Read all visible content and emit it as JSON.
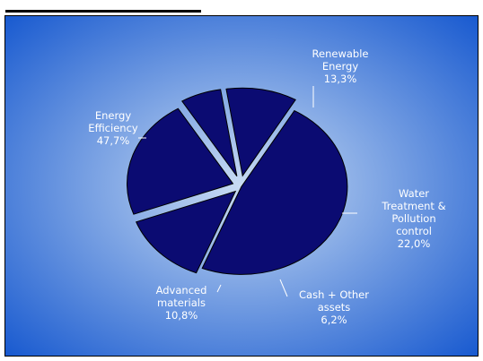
{
  "chart_data": {
    "type": "pie",
    "categories": [
      "Energy Efficiency",
      "Renewable Energy",
      "Water Treatment & Pollution control",
      "Cash + Other assets",
      "Advanced materials"
    ],
    "values": [
      47.7,
      13.3,
      22.0,
      6.2,
      10.8
    ],
    "value_labels": [
      "47,7%",
      "13,3%",
      "22,0%",
      "6,2%",
      "10,8%"
    ],
    "label_lines": [
      [
        "Energy",
        "Efficiency"
      ],
      [
        "Renewable",
        "Energy"
      ],
      [
        "Water",
        "Treatment &",
        "Pollution",
        "control"
      ],
      [
        "Cash + Other",
        "assets"
      ],
      [
        "Advanced",
        "materials"
      ]
    ],
    "legend": "none",
    "exploded": true
  },
  "colors": {
    "slice_fill": "#0b0b72",
    "slice_stroke": "#000000",
    "background_center": "#c9dcf3",
    "background_edge": "#1a5bd0",
    "label_text": "#ffffff"
  }
}
